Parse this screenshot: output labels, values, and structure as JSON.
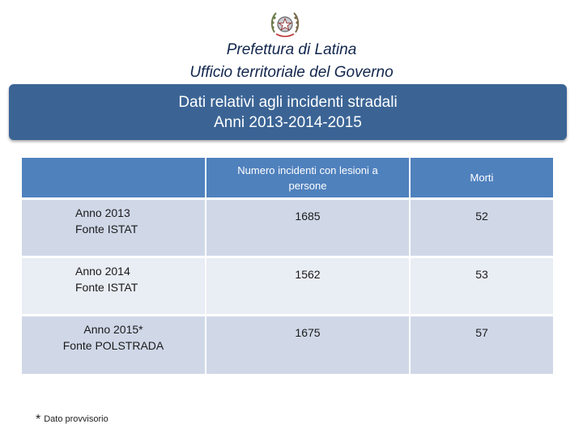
{
  "header": {
    "line1": "Prefettura di Latina",
    "line2": "Ufficio territoriale del Governo"
  },
  "banner": {
    "line1": "Dati relativi agli incidenti stradali",
    "line2": "Anni 2013-2014-2015"
  },
  "table": {
    "columns": [
      "",
      "Numero incidenti con lesioni a persone",
      "Morti"
    ],
    "rows": [
      {
        "label_year": "Anno 2013",
        "label_source": "Fonte ISTAT",
        "incidenti": "1685",
        "morti": "52"
      },
      {
        "label_year": "Anno 2014",
        "label_source": "Fonte ISTAT",
        "incidenti": "1562",
        "morti": "53"
      },
      {
        "label_year": "Anno 2015*",
        "label_source": "Fonte POLSTRADA",
        "incidenti": "1675",
        "morti": "57"
      }
    ]
  },
  "footnote": {
    "star": "*",
    "text": "Dato provvisorio"
  },
  "colors": {
    "banner": "#3b6495",
    "header_row": "#4f81bd",
    "row_dark": "#d0d8e8",
    "row_light": "#e9edf4",
    "title_text": "#12264d"
  }
}
